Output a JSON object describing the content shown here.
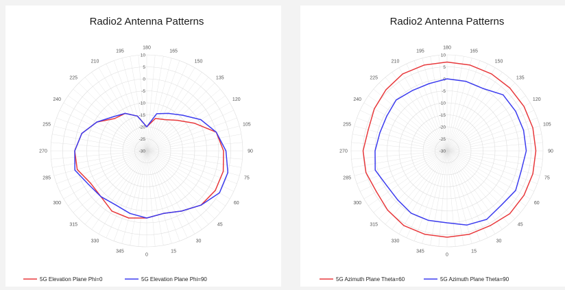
{
  "chart_data": [
    {
      "type": "polar-line",
      "title": "Radio2 Antenna Patterns",
      "angle_labels": [
        "0",
        "15",
        "30",
        "45",
        "60",
        "75",
        "90",
        "105",
        "120",
        "135",
        "150",
        "165",
        "180",
        "195",
        "210",
        "225",
        "240",
        "255",
        "270",
        "285",
        "300",
        "315",
        "330",
        "345"
      ],
      "radial_labels": [
        "10",
        "5",
        "0",
        "-5",
        "-10",
        "-15",
        "-20",
        "-25",
        "-30"
      ],
      "radial_range": [
        -30,
        10
      ],
      "angular_direction": "clockwise",
      "zero_direction": "bottom",
      "grid": true,
      "legend_position": "bottom",
      "series": [
        {
          "name": "5G Elevation Plane Phi=0",
          "color": "#e8383b",
          "theta": [
            0,
            15,
            30,
            45,
            60,
            75,
            90,
            105,
            120,
            135,
            150,
            165,
            180,
            195,
            210,
            225,
            240,
            255,
            270,
            285,
            300,
            315,
            330,
            345,
            360
          ],
          "r": [
            -2,
            -3,
            -1,
            2,
            3,
            3,
            2,
            0,
            -7,
            -12,
            -15,
            -16,
            -20,
            -15,
            -12,
            -11,
            -6,
            -2,
            0,
            0,
            -3,
            -3,
            -1,
            -1,
            -2
          ]
        },
        {
          "name": "5G Elevation Plane Phi=90",
          "color": "#3b3bef",
          "theta": [
            0,
            15,
            30,
            45,
            60,
            75,
            90,
            105,
            120,
            135,
            150,
            165,
            180,
            195,
            210,
            225,
            240,
            255,
            270,
            285,
            300,
            315,
            330,
            345,
            360
          ],
          "r": [
            -2,
            -3,
            -1,
            2,
            5,
            5,
            3,
            0,
            -4,
            -9,
            -12,
            -14,
            -20,
            -15,
            -12,
            -10,
            -6,
            -2,
            0,
            1,
            -2,
            -3,
            -4,
            -3,
            -2
          ]
        }
      ]
    },
    {
      "type": "polar-line",
      "title": "Radio2 Antenna Patterns",
      "angle_labels": [
        "0",
        "15",
        "30",
        "45",
        "60",
        "75",
        "90",
        "105",
        "120",
        "135",
        "150",
        "165",
        "180",
        "195",
        "210",
        "225",
        "240",
        "255",
        "270",
        "285",
        "300",
        "315",
        "330",
        "345"
      ],
      "radial_labels": [
        "10",
        "5",
        "0",
        "-5",
        "-10",
        "-15",
        "-20",
        "-25",
        "-30"
      ],
      "radial_range": [
        -30,
        10
      ],
      "angular_direction": "clockwise",
      "zero_direction": "bottom",
      "grid": true,
      "legend_position": "bottom",
      "series": [
        {
          "name": "5G Azimuth Plane Theta=60",
          "color": "#e8383b",
          "theta": [
            0,
            15,
            30,
            45,
            60,
            75,
            90,
            105,
            120,
            135,
            150,
            165,
            180,
            195,
            210,
            225,
            240,
            255,
            270,
            285,
            300,
            315,
            330,
            345,
            360
          ],
          "r": [
            6,
            6,
            6,
            7,
            7,
            7,
            7,
            7,
            7,
            7,
            7,
            7,
            7,
            7,
            7,
            6,
            5,
            4,
            5,
            5,
            4,
            5,
            6,
            6,
            6
          ],
          "note_none": ""
        },
        {
          "name": "5G Azimuth Plane Theta=90",
          "color": "#3b3bef",
          "theta": [
            0,
            15,
            30,
            45,
            60,
            75,
            90,
            105,
            120,
            135,
            150,
            165,
            180,
            195,
            210,
            225,
            240,
            255,
            270,
            285,
            300,
            315,
            330,
            345,
            360
          ],
          "r": [
            0,
            2,
            3,
            2,
            3,
            2,
            3,
            3,
            3,
            3,
            0,
            0,
            0,
            -1,
            -1,
            0,
            -1,
            -1,
            0,
            1,
            -1,
            -1,
            0,
            0,
            0
          ]
        }
      ]
    }
  ],
  "colors": {
    "grid": "#dddddd",
    "panel_background": "#ffffff",
    "page_background": "#f3f3f3"
  }
}
